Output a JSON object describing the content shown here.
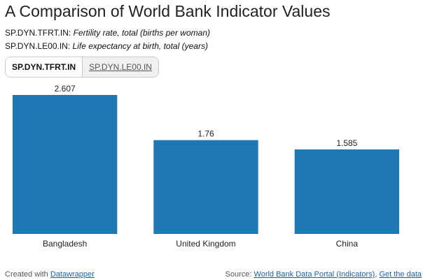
{
  "title": "A Comparison of World Bank Indicator Values",
  "indicators": [
    {
      "code": "SP.DYN.TFRT.IN:",
      "desc": "Fertility rate, total (births per woman)"
    },
    {
      "code": "SP.DYN.LE00.IN:",
      "desc": "Life expectancy at birth, total (years)"
    }
  ],
  "tabs": [
    {
      "label": "SP.DYN.TFRT.IN",
      "active": true
    },
    {
      "label": "SP.DYN.LE00.IN",
      "active": false
    }
  ],
  "chart_data": {
    "type": "bar",
    "categories": [
      "Bangladesh",
      "United Kingdom",
      "China"
    ],
    "values": [
      2.607,
      1.76,
      1.585
    ],
    "value_labels": [
      "2.607",
      "1.76",
      "1.585"
    ],
    "ylim": [
      0,
      2.607
    ],
    "grid": false,
    "bar_color": "#1f77b4"
  },
  "footer": {
    "created_prefix": "Created with",
    "created_link": "Datawrapper",
    "source_prefix": "Source:",
    "source_link": "World Bank Data Portal (Indicators)",
    "separator": ",",
    "get_data_link": "Get the data"
  }
}
